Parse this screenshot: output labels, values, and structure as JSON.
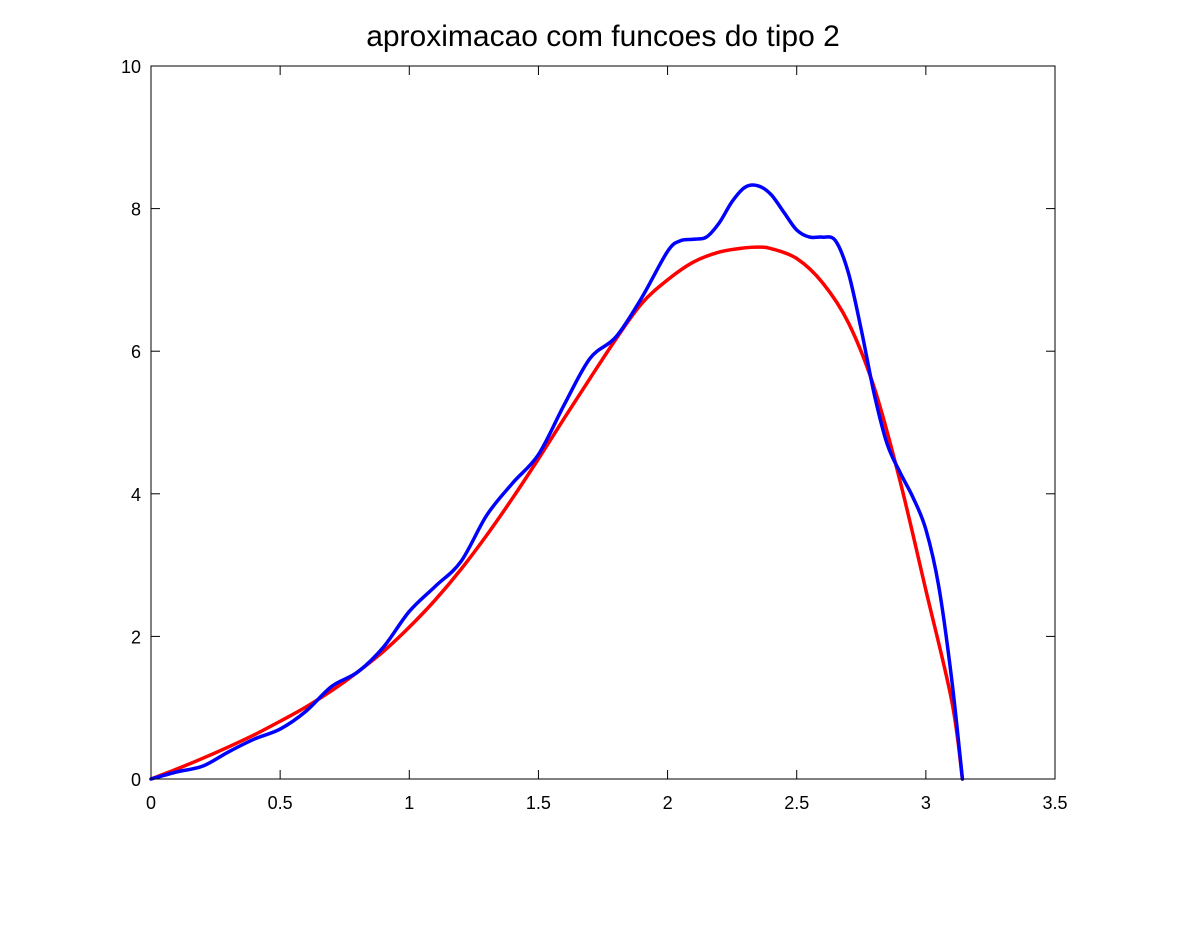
{
  "chart_data": {
    "type": "line",
    "title": "aproximacao com funcoes do tipo 2",
    "xlabel": "",
    "ylabel": "",
    "xlim": [
      0,
      3.5
    ],
    "ylim": [
      0,
      10
    ],
    "grid": false,
    "x_ticks": [
      0,
      0.5,
      1,
      1.5,
      2,
      2.5,
      3,
      3.5
    ],
    "x_tick_labels": [
      "0",
      "0.5",
      "1",
      "1.5",
      "2",
      "2.5",
      "3",
      "3.5"
    ],
    "y_ticks": [
      0,
      2,
      4,
      6,
      8,
      10
    ],
    "y_tick_labels": [
      "0",
      "2",
      "4",
      "6",
      "8",
      "10"
    ],
    "series": [
      {
        "color": "#ff0000",
        "x": [
          0,
          0.1,
          0.2,
          0.3,
          0.4,
          0.5,
          0.6,
          0.7,
          0.8,
          0.9,
          1.0,
          1.1,
          1.2,
          1.3,
          1.4,
          1.5,
          1.6,
          1.7,
          1.8,
          1.9,
          2.0,
          2.1,
          2.2,
          2.3,
          2.356,
          2.4,
          2.5,
          2.6,
          2.7,
          2.8,
          2.9,
          3.0,
          3.1,
          3.1416
        ],
        "y": [
          0,
          0.14,
          0.29,
          0.45,
          0.62,
          0.81,
          1.01,
          1.24,
          1.5,
          1.79,
          2.13,
          2.51,
          2.94,
          3.42,
          3.94,
          4.49,
          5.06,
          5.62,
          6.17,
          6.67,
          7.0,
          7.25,
          7.39,
          7.45,
          7.46,
          7.44,
          7.3,
          6.96,
          6.4,
          5.49,
          4.18,
          2.65,
          1.1,
          0.0
        ]
      },
      {
        "color": "#0000ff",
        "x": [
          0,
          0.1,
          0.2,
          0.3,
          0.4,
          0.5,
          0.6,
          0.7,
          0.8,
          0.9,
          1.0,
          1.1,
          1.2,
          1.3,
          1.4,
          1.5,
          1.6,
          1.7,
          1.8,
          1.9,
          2.0,
          2.05,
          2.1,
          2.15,
          2.2,
          2.25,
          2.3,
          2.35,
          2.4,
          2.45,
          2.5,
          2.55,
          2.6,
          2.65,
          2.7,
          2.75,
          2.8,
          2.85,
          2.9,
          2.95,
          3.0,
          3.05,
          3.1,
          3.1416
        ],
        "y": [
          0,
          0.1,
          0.18,
          0.38,
          0.56,
          0.7,
          0.95,
          1.3,
          1.5,
          1.85,
          2.35,
          2.7,
          3.05,
          3.7,
          4.15,
          4.55,
          5.25,
          5.9,
          6.2,
          6.75,
          7.4,
          7.55,
          7.57,
          7.6,
          7.8,
          8.1,
          8.3,
          8.32,
          8.2,
          7.95,
          7.7,
          7.6,
          7.6,
          7.55,
          7.1,
          6.3,
          5.4,
          4.7,
          4.3,
          3.95,
          3.5,
          2.7,
          1.4,
          0.0
        ]
      }
    ]
  }
}
